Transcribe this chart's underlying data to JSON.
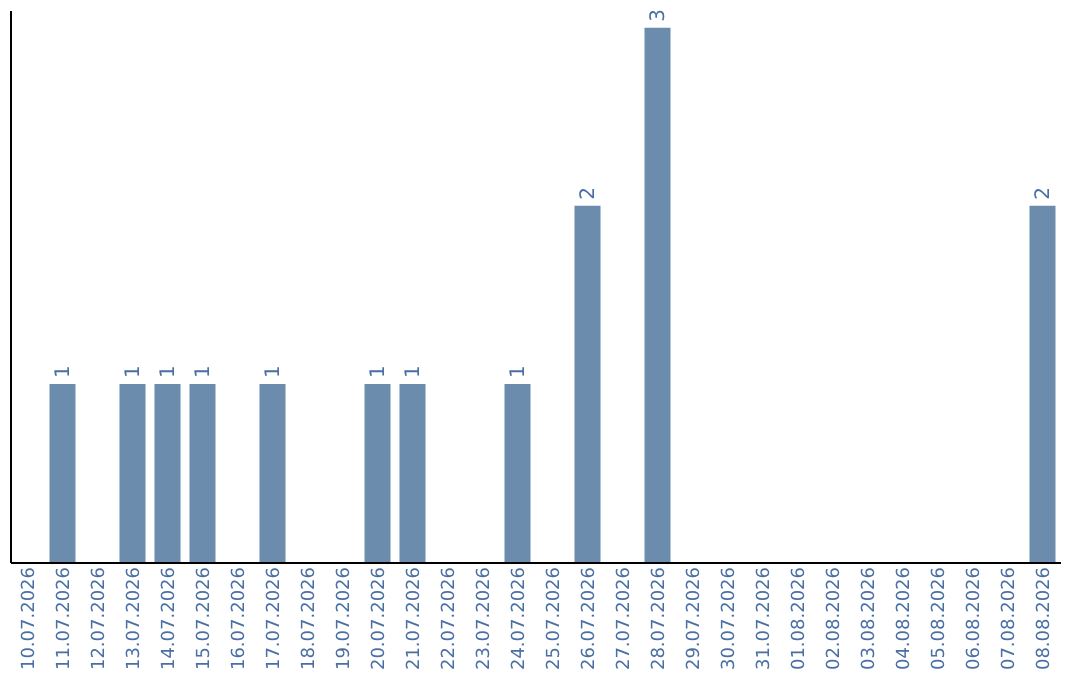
{
  "chart_data": {
    "type": "bar",
    "categories": [
      "10.07.2026",
      "11.07.2026",
      "12.07.2026",
      "13.07.2026",
      "14.07.2026",
      "15.07.2026",
      "16.07.2026",
      "17.07.2026",
      "18.07.2026",
      "19.07.2026",
      "20.07.2026",
      "21.07.2026",
      "22.07.2026",
      "23.07.2026",
      "24.07.2026",
      "25.07.2026",
      "26.07.2026",
      "27.07.2026",
      "28.07.2026",
      "29.07.2026",
      "30.07.2026",
      "31.07.2026",
      "01.08.2026",
      "02.08.2026",
      "03.08.2026",
      "04.08.2026",
      "05.08.2026",
      "06.08.2026",
      "07.08.2026",
      "08.08.2026"
    ],
    "values": [
      0,
      1,
      0,
      1,
      1,
      1,
      0,
      1,
      0,
      0,
      1,
      1,
      0,
      0,
      1,
      0,
      2,
      0,
      3,
      0,
      0,
      0,
      0,
      0,
      0,
      0,
      0,
      0,
      0,
      2
    ],
    "value_labels": [
      null,
      "1",
      null,
      "1",
      "1",
      "1",
      null,
      "1",
      null,
      null,
      "1",
      "1",
      null,
      null,
      "1",
      null,
      "2",
      null,
      "3",
      null,
      null,
      null,
      null,
      null,
      null,
      null,
      null,
      null,
      null,
      "2"
    ],
    "color": "#6b8cad",
    "ylim": [
      0,
      3.1
    ],
    "tick_labels": "x",
    "grid": false
  }
}
